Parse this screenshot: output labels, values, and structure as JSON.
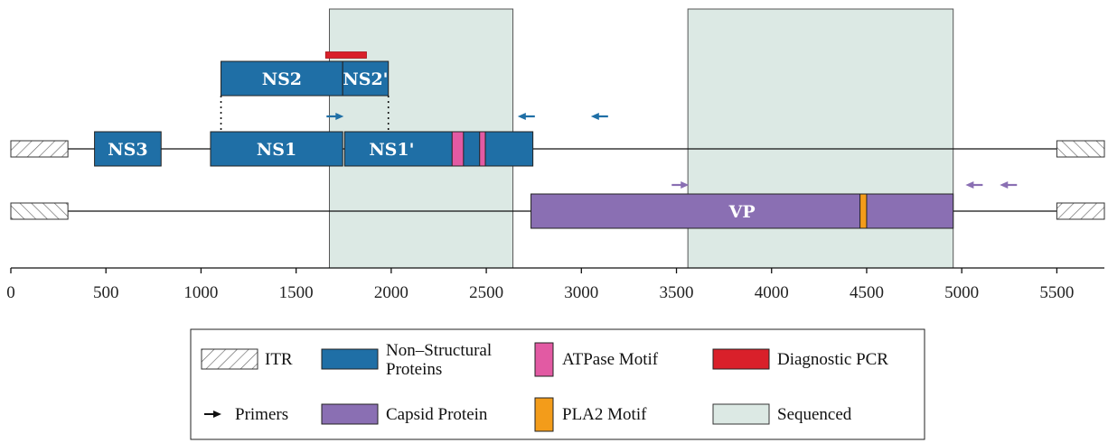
{
  "colors": {
    "nonstructural": "#1f6fa6",
    "capsid": "#8a6fb3",
    "atpase": "#e25aa3",
    "pla2": "#f39c1a",
    "diagnostic": "#d9202a",
    "sequenced": "#dce9e4",
    "primer_ns": "#1f6fa6",
    "primer_vp": "#8a6fb3"
  },
  "axis": {
    "min": 0,
    "max": 5750,
    "ticks": [
      "0",
      "500",
      "1000",
      "1500",
      "2000",
      "2500",
      "3000",
      "3500",
      "4000",
      "4500",
      "5000",
      "5500"
    ]
  },
  "sequenced_regions": [
    {
      "start": 1675,
      "end": 2640
    },
    {
      "start": 3560,
      "end": 4955
    }
  ],
  "itr": [
    {
      "track": "ns",
      "start": 0,
      "end": 300,
      "dir": "right"
    },
    {
      "track": "ns",
      "start": 5500,
      "end": 5750,
      "dir": "left"
    },
    {
      "track": "vp",
      "start": 0,
      "end": 300,
      "dir": "left"
    },
    {
      "track": "vp",
      "start": 5500,
      "end": 5750,
      "dir": "right"
    }
  ],
  "genes": [
    {
      "label": "NS3",
      "start": 440,
      "end": 790,
      "track": "ns"
    },
    {
      "label": "NS1",
      "start": 1050,
      "end": 1745,
      "track": "ns"
    },
    {
      "label": "NS1'",
      "start": 1755,
      "end": 2745,
      "track": "ns"
    },
    {
      "label": "NS2",
      "start": 1105,
      "end": 1745,
      "track": "ns2"
    },
    {
      "label": "NS2'",
      "start": 1745,
      "end": 1985,
      "track": "ns2"
    },
    {
      "label": "VP",
      "start": 2735,
      "end": 4955,
      "track": "vp"
    }
  ],
  "motifs": [
    {
      "type": "atpase",
      "start": 2320,
      "end": 2380
    },
    {
      "type": "atpase",
      "start": 2465,
      "end": 2495
    },
    {
      "type": "pla2",
      "start": 4465,
      "end": 4500
    }
  ],
  "diagnostic_pcr": {
    "start": 1655,
    "end": 1870
  },
  "primers": [
    {
      "pos": 1660,
      "dir": "right",
      "track": "ns"
    },
    {
      "pos": 2665,
      "dir": "left",
      "track": "ns"
    },
    {
      "pos": 3050,
      "dir": "left",
      "track": "ns"
    },
    {
      "pos": 3475,
      "dir": "right",
      "track": "vp"
    },
    {
      "pos": 5020,
      "dir": "left",
      "track": "vp"
    },
    {
      "pos": 5200,
      "dir": "left",
      "track": "vp"
    }
  ],
  "legend": {
    "itr": "ITR",
    "nonstructural_line1": "Non–Structural",
    "nonstructural_line2": "Proteins",
    "atpase": "ATPase Motif",
    "diagnostic": "Diagnostic PCR",
    "primers": "Primers",
    "capsid": "Capsid Protein",
    "pla2": "PLA2 Motif",
    "sequenced": "Sequenced"
  }
}
